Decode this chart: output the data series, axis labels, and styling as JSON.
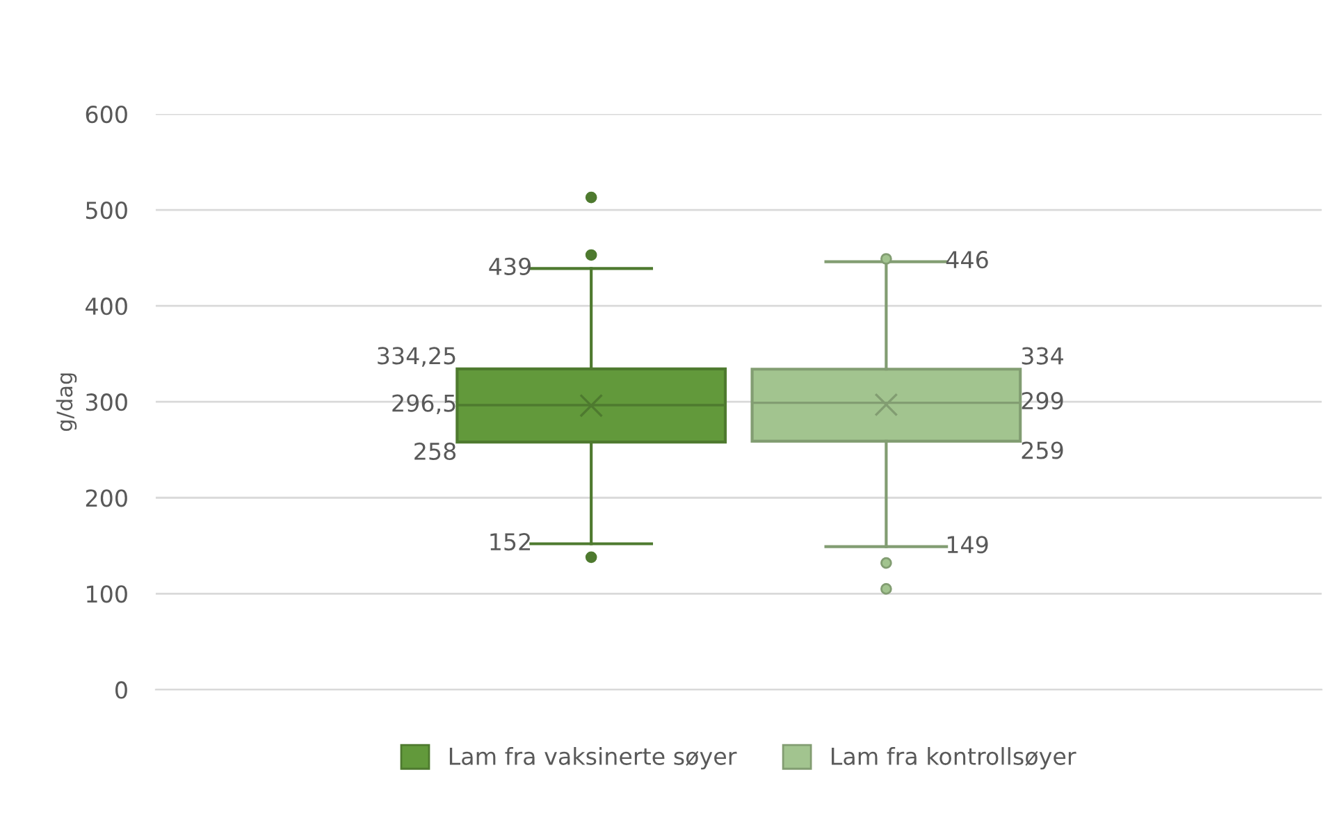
{
  "chart_data": {
    "type": "box",
    "ylabel": "g/dag",
    "categories": [
      null
    ],
    "series": [
      {
        "name": "Lam fra vaksinerte søyer",
        "color": "#62993b",
        "boxes": [
          {
            "low": 152,
            "q1": 258,
            "median": 296.5,
            "q3": 334.25,
            "high": 439,
            "mean": 296,
            "outliers": [
              513,
              453,
              138
            ]
          }
        ]
      },
      {
        "name": "Lam fra kontrollsøyer",
        "color": "#a2c48f",
        "boxes": [
          {
            "low": 149,
            "q1": 259,
            "median": 299,
            "q3": 334,
            "high": 446,
            "mean": 297,
            "outliers": [
              449,
              132,
              105
            ]
          }
        ]
      }
    ],
    "ylim": [
      0,
      600
    ],
    "yticks": [
      0,
      100,
      200,
      300,
      400,
      500,
      600
    ],
    "grid": "y",
    "legend": "bottom",
    "annotations": [
      "439",
      "334,25",
      "296,5",
      "258",
      "152",
      "446",
      "334",
      "299",
      "259",
      "149"
    ]
  }
}
